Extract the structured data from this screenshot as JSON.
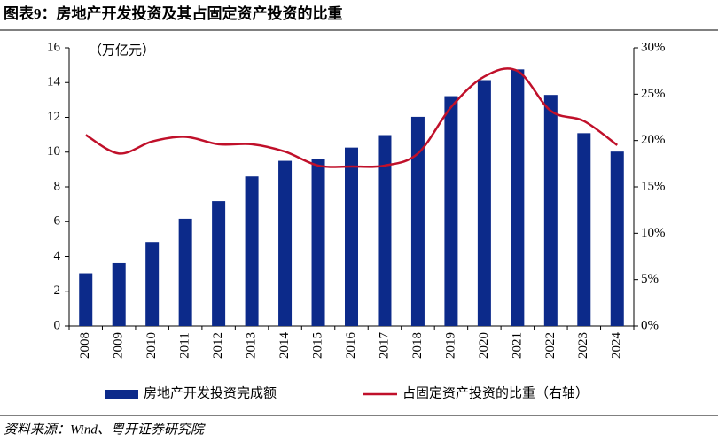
{
  "title": "图表9：房地产开发投资及其占固定资产投资的比重",
  "source": "资料来源：Wind、粤开证券研究院",
  "chart_data": {
    "type": "bar",
    "y_unit": "（万亿元）",
    "categories": [
      "2008",
      "2009",
      "2010",
      "2011",
      "2012",
      "2013",
      "2014",
      "2015",
      "2016",
      "2017",
      "2018",
      "2019",
      "2020",
      "2021",
      "2022",
      "2023",
      "2024"
    ],
    "series": [
      {
        "name": "房地产开发投资完成额",
        "type": "bar",
        "color": "#0c2a8a",
        "axis": "y",
        "values": [
          3.03,
          3.62,
          4.83,
          6.17,
          7.18,
          8.6,
          9.5,
          9.6,
          10.26,
          10.98,
          12.03,
          13.22,
          14.14,
          14.76,
          13.29,
          11.09,
          10.03
        ]
      },
      {
        "name": "占固定资产投资的比重（右轴）",
        "type": "line",
        "color": "#c0102a",
        "axis": "y2",
        "values": [
          20.6,
          18.6,
          19.9,
          20.4,
          19.6,
          19.6,
          18.8,
          17.3,
          17.2,
          17.3,
          18.6,
          23.6,
          26.9,
          27.5,
          23.2,
          22.1,
          19.5
        ]
      }
    ],
    "ylim": [
      0,
      16
    ],
    "yticks": [
      0,
      2,
      4,
      6,
      8,
      10,
      12,
      14,
      16
    ],
    "y2lim": [
      0,
      30
    ],
    "y2ticks": [
      {
        "value": 0,
        "label": "0%"
      },
      {
        "value": 5,
        "label": "5%"
      },
      {
        "value": 10,
        "label": "10%"
      },
      {
        "value": 15,
        "label": "15%"
      },
      {
        "value": 20,
        "label": "20%"
      },
      {
        "value": 25,
        "label": "25%"
      },
      {
        "value": 30,
        "label": "30%"
      }
    ],
    "legend": "bottom"
  }
}
